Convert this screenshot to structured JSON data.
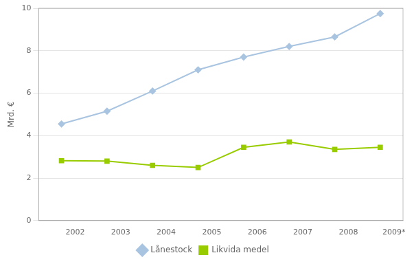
{
  "chart_data": {
    "type": "line",
    "y_label": "Mrd. €",
    "x": [
      2001.7,
      2002.7,
      2003.7,
      2004.7,
      2005.7,
      2006.7,
      2007.7,
      2008.7
    ],
    "series": [
      {
        "name": "Lånestock",
        "color": "#A8C4E0",
        "marker": "diamond",
        "values": [
          4.55,
          5.15,
          6.1,
          7.1,
          7.7,
          8.2,
          8.65,
          9.75
        ]
      },
      {
        "name": "Likvida medel",
        "color": "#99CC00",
        "marker": "square",
        "values": [
          2.82,
          2.8,
          2.6,
          2.5,
          3.45,
          3.7,
          3.35,
          3.45
        ]
      }
    ],
    "xlim": [
      2001.2,
      2009.2
    ],
    "xticks": [
      2002,
      2003,
      2004,
      2005,
      2006,
      2007,
      2008,
      {
        "value": 2009,
        "label": "2009*"
      }
    ],
    "ylim": [
      0,
      10
    ],
    "yticks": [
      0,
      2,
      4,
      6,
      8,
      10
    ],
    "grid": "y",
    "legend": "bottom"
  }
}
